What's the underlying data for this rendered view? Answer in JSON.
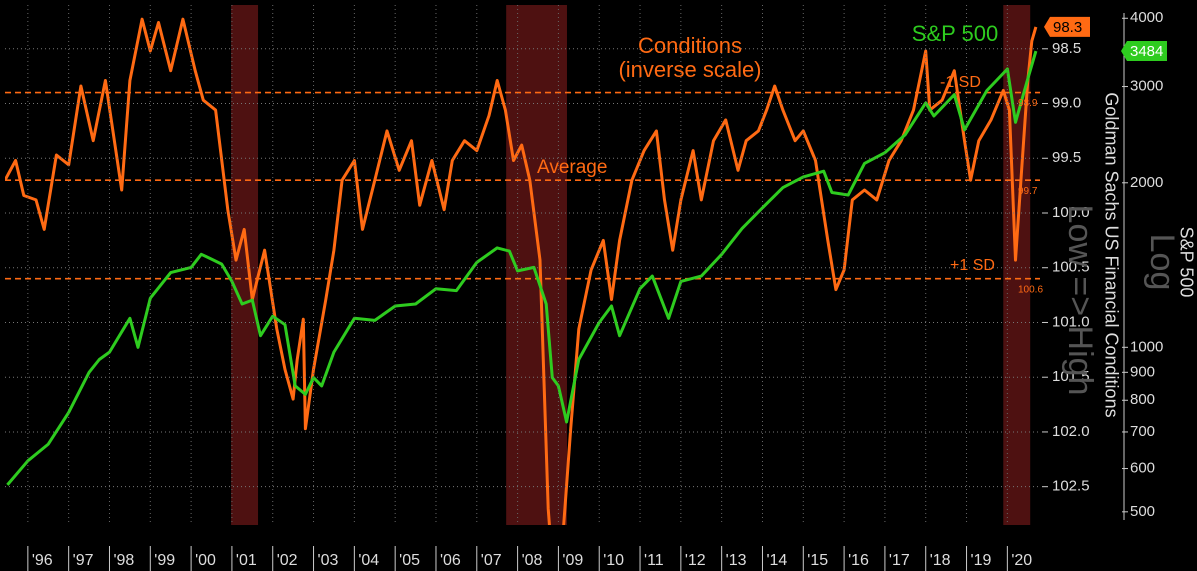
{
  "chart_data": {
    "type": "line",
    "annotations": [
      "Conditions",
      "(inverse scale)",
      "S&P 500"
    ],
    "y_label": "Goldman Sachs US Financial Conditions",
    "y_label_note": "Low => High",
    "y2_label": "S&P 500",
    "y2_scale_note": "Log",
    "xlim": [
      1995.44,
      2020.8
    ],
    "xticks": [
      {
        "value": 1996,
        "label": "'96"
      },
      {
        "value": 1997,
        "label": "'97"
      },
      {
        "value": 1998,
        "label": "'98"
      },
      {
        "value": 1999,
        "label": "'99"
      },
      {
        "value": 2000,
        "label": "'00"
      },
      {
        "value": 2001,
        "label": "'01"
      },
      {
        "value": 2002,
        "label": "'02"
      },
      {
        "value": 2003,
        "label": "'03"
      },
      {
        "value": 2004,
        "label": "'04"
      },
      {
        "value": 2005,
        "label": "'05"
      },
      {
        "value": 2006,
        "label": "'06"
      },
      {
        "value": 2007,
        "label": "'07"
      },
      {
        "value": 2008,
        "label": "'08"
      },
      {
        "value": 2009,
        "label": "'09"
      },
      {
        "value": 2010,
        "label": "'10"
      },
      {
        "value": 2011,
        "label": "'11"
      },
      {
        "value": 2012,
        "label": "'12"
      },
      {
        "value": 2013,
        "label": "'13"
      },
      {
        "value": 2014,
        "label": "'14"
      },
      {
        "value": 2015,
        "label": "'15"
      },
      {
        "value": 2016,
        "label": "'16"
      },
      {
        "value": 2017,
        "label": "'17"
      },
      {
        "value": 2018,
        "label": "'18"
      },
      {
        "value": 2019,
        "label": "'19"
      },
      {
        "value": 2020,
        "label": "'20"
      }
    ],
    "ylim": [
      102.85,
      98.1
    ],
    "yticks": [
      98.5,
      {
        "value": 99,
        "label": "99.0"
      },
      99.5,
      {
        "value": 100,
        "label": "100.0"
      },
      100.5,
      {
        "value": 101,
        "label": "101.0"
      },
      101.5,
      {
        "value": 102,
        "label": "102.0"
      },
      102.5
    ],
    "y2lim": [
      473,
      4230
    ],
    "y2log": true,
    "y2ticks": [
      500,
      600,
      700,
      800,
      900,
      1000,
      2000,
      3000,
      4000
    ],
    "grid": true,
    "recessions": [
      [
        2000.98,
        2001.64
      ],
      [
        2007.72,
        2009.21
      ],
      [
        2019.9,
        2020.56
      ]
    ],
    "reference_lines": [
      {
        "name": "-1 SD",
        "value": 98.9,
        "label": "98.9"
      },
      {
        "name": "Average",
        "value": 99.7,
        "label": "99.7"
      },
      {
        "name": "+1 SD",
        "value": 100.6,
        "label": "100.6"
      }
    ],
    "series": [
      {
        "name": "Conditions",
        "color": "#ff6a13",
        "last_label": "98.3",
        "x": [
          1995.44,
          1995.7,
          1995.9,
          1996.2,
          1996.4,
          1996.7,
          1997.0,
          1997.3,
          1997.6,
          1997.9,
          1998.3,
          1998.5,
          1998.8,
          1999.0,
          1999.2,
          1999.5,
          1999.8,
          2000.1,
          2000.3,
          2000.6,
          2000.9,
          2001.1,
          2001.3,
          2001.5,
          2001.8,
          2002.1,
          2002.3,
          2002.5,
          2002.6,
          2002.75,
          2002.8,
          2003.0,
          2003.3,
          2003.5,
          2003.7,
          2004.0,
          2004.2,
          2004.5,
          2004.8,
          2005.1,
          2005.4,
          2005.6,
          2005.9,
          2006.2,
          2006.4,
          2006.7,
          2007.0,
          2007.3,
          2007.5,
          2007.7,
          2007.9,
          2008.1,
          2008.3,
          2008.55,
          2008.75,
          2008.85,
          2009.1,
          2009.3,
          2009.5,
          2009.8,
          2010.1,
          2010.3,
          2010.5,
          2010.8,
          2011.1,
          2011.4,
          2011.6,
          2011.8,
          2012.0,
          2012.3,
          2012.5,
          2012.8,
          2013.1,
          2013.4,
          2013.6,
          2013.9,
          2014.1,
          2014.3,
          2014.5,
          2014.8,
          2015.0,
          2015.3,
          2015.6,
          2015.8,
          2016.0,
          2016.2,
          2016.5,
          2016.8,
          2017.1,
          2017.4,
          2017.7,
          2018.0,
          2018.1,
          2018.4,
          2018.7,
          2018.95,
          2019.1,
          2019.3,
          2019.6,
          2019.9,
          2020.05,
          2020.2,
          2020.35,
          2020.5,
          2020.6,
          2020.7
        ],
        "values": [
          99.7,
          99.52,
          99.84,
          99.88,
          100.15,
          99.47,
          99.56,
          98.84,
          99.34,
          98.79,
          99.79,
          98.79,
          98.23,
          98.52,
          98.26,
          98.7,
          98.23,
          98.7,
          98.97,
          99.06,
          99.97,
          100.43,
          100.15,
          100.79,
          100.34,
          101.06,
          101.43,
          101.7,
          101.34,
          100.97,
          101.97,
          101.43,
          100.79,
          100.34,
          99.7,
          99.52,
          100.15,
          99.7,
          99.25,
          99.61,
          99.34,
          99.93,
          99.52,
          99.97,
          99.52,
          99.34,
          99.43,
          99.11,
          98.79,
          99.06,
          99.52,
          99.38,
          99.7,
          100.43,
          102.7,
          103.2,
          103.0,
          101.97,
          101.06,
          100.52,
          100.25,
          100.79,
          100.25,
          99.7,
          99.43,
          99.25,
          99.88,
          100.34,
          99.88,
          99.43,
          99.88,
          99.34,
          99.15,
          99.61,
          99.34,
          99.25,
          99.06,
          98.84,
          99.06,
          99.34,
          99.25,
          99.52,
          100.25,
          100.7,
          100.52,
          99.88,
          99.79,
          99.88,
          99.52,
          99.34,
          99.06,
          98.52,
          99.06,
          98.97,
          98.7,
          99.34,
          99.7,
          99.34,
          99.15,
          98.88,
          99.06,
          100.43,
          99.61,
          98.79,
          98.43,
          98.3
        ]
      },
      {
        "name": "S&P 500",
        "color": "#2ecc1f",
        "axis": "y2",
        "last_label": "3484",
        "x": [
          1995.5,
          1996.0,
          1996.5,
          1997.0,
          1997.5,
          1997.75,
          1998.0,
          1998.5,
          1998.7,
          1999.0,
          1999.5,
          2000.0,
          2000.25,
          2000.5,
          2000.75,
          2001.0,
          2001.25,
          2001.5,
          2001.7,
          2002.0,
          2002.3,
          2002.55,
          2002.8,
          2003.0,
          2003.2,
          2003.5,
          2004.0,
          2004.5,
          2005.0,
          2005.5,
          2006.0,
          2006.5,
          2007.0,
          2007.5,
          2007.8,
          2008.0,
          2008.4,
          2008.7,
          2008.85,
          2009.0,
          2009.2,
          2009.5,
          2010.0,
          2010.3,
          2010.5,
          2011.0,
          2011.3,
          2011.7,
          2012.0,
          2012.5,
          2013.0,
          2013.5,
          2014.0,
          2014.5,
          2015.0,
          2015.5,
          2015.7,
          2016.1,
          2016.5,
          2017.0,
          2017.5,
          2018.0,
          2018.2,
          2018.7,
          2018.95,
          2019.5,
          2020.0,
          2020.2,
          2020.5,
          2020.7
        ],
        "values": [
          560,
          620,
          665,
          760,
          900,
          950,
          980,
          1130,
          1000,
          1230,
          1370,
          1400,
          1480,
          1450,
          1420,
          1320,
          1200,
          1220,
          1050,
          1140,
          1100,
          850,
          820,
          880,
          850,
          980,
          1130,
          1120,
          1190,
          1200,
          1280,
          1270,
          1430,
          1520,
          1500,
          1380,
          1400,
          1200,
          880,
          850,
          730,
          950,
          1110,
          1190,
          1050,
          1280,
          1350,
          1130,
          1320,
          1350,
          1480,
          1650,
          1800,
          1960,
          2050,
          2100,
          1920,
          1900,
          2170,
          2270,
          2450,
          2800,
          2650,
          2900,
          2500,
          2950,
          3230,
          2580,
          3100,
          3484
        ]
      }
    ]
  }
}
